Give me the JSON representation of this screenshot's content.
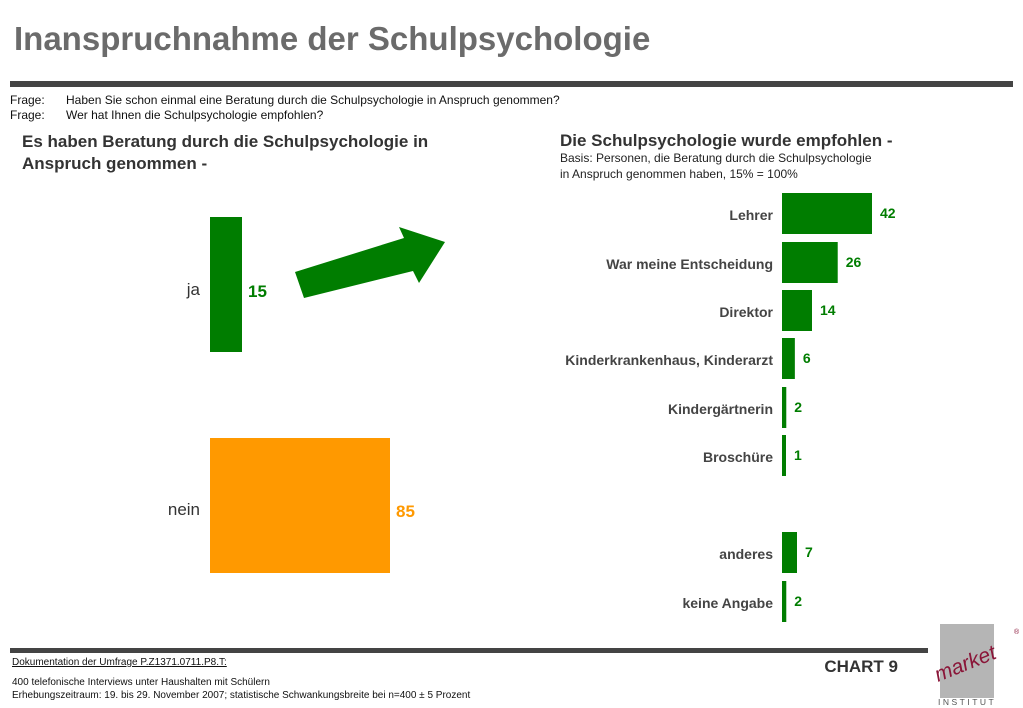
{
  "title": "Inanspruchnahme der Schulpsychologie",
  "questions": [
    {
      "label": "Frage:",
      "text": "Haben Sie schon einmal eine Beratung durch die Schulpsychologie in Anspruch genommen?"
    },
    {
      "label": "Frage:",
      "text": "Wer hat Ihnen die Schulpsychologie empfohlen?"
    }
  ],
  "colors": {
    "green": "#007d00",
    "orange": "#ff9900",
    "rule": "#444444",
    "title": "#6b6b6b"
  },
  "chart_data": [
    {
      "type": "bar",
      "title": "Es haben Beratung durch die Schulpsychologie in Anspruch genommen -",
      "categories": [
        "ja",
        "nein"
      ],
      "values": [
        15,
        85
      ],
      "colors": [
        "#007d00",
        "#ff9900"
      ]
    },
    {
      "type": "bar",
      "orientation": "horizontal",
      "title": "Die Schulpsychologie wurde empfohlen -",
      "subtitle": [
        "Basis: Personen, die Beratung durch die Schulpsychologie",
        "in Anspruch genommen haben, 15% = 100%"
      ],
      "categories": [
        "Lehrer",
        "War meine Entscheidung",
        "Direktor",
        "Kinderkrankenhaus, Kinderarzt",
        "Kindergärtnerin",
        "Broschüre",
        "anderes",
        "keine Angabe"
      ],
      "values": [
        42,
        26,
        14,
        6,
        2,
        1,
        7,
        2
      ],
      "color": "#007d00"
    }
  ],
  "footer": {
    "doc_link": "Dokumentation der Umfrage P.Z1371.0711.P8.T:",
    "line1": "400 telefonische Interviews unter Haushalten mit Schülern",
    "line2": "Erhebungszeitraum: 19. bis 29. November 2007; statistische Schwankungsbreite bei n=400 ± 5 Prozent",
    "chart_label": "CHART 9"
  },
  "logo": {
    "word": "market",
    "sub": "INSTITUT",
    "mark": "®"
  }
}
